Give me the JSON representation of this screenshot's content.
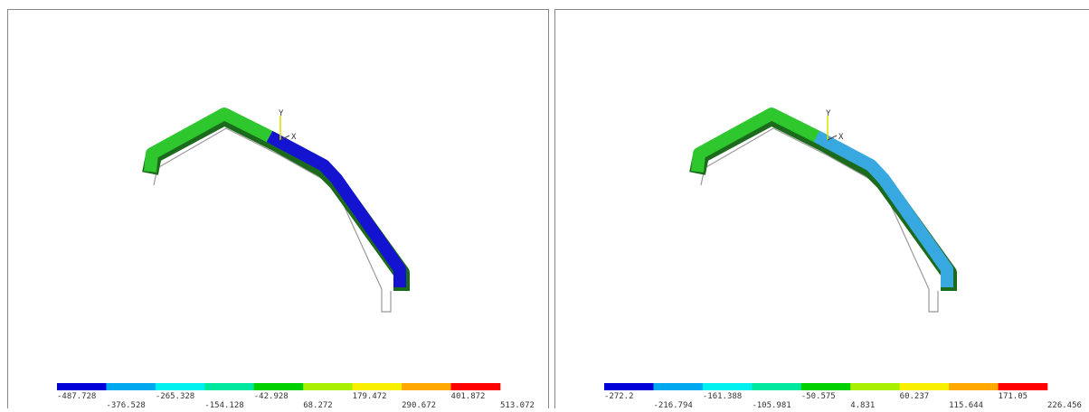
{
  "panels": [
    {
      "axis_labels": [
        "Y",
        "X"
      ],
      "legend": {
        "colors": [
          "#0000d8",
          "#00a8f0",
          "#00f0f0",
          "#00e8a0",
          "#00d000",
          "#a8f000",
          "#f8f000",
          "#ffa800",
          "#ff0000"
        ],
        "labels": [
          -487.728,
          -376.528,
          -265.328,
          -154.128,
          -42.928,
          68.272,
          179.472,
          290.672,
          401.872,
          513.072
        ]
      }
    },
    {
      "axis_labels": [
        "Y",
        "X"
      ],
      "legend": {
        "colors": [
          "#0000d8",
          "#00a8f0",
          "#00f0f0",
          "#00e8a0",
          "#00d000",
          "#a8f000",
          "#f8f000",
          "#ffa800",
          "#ff0000"
        ],
        "labels": [
          -272.2,
          -216.794,
          -161.388,
          -105.981,
          -50.575,
          4.831,
          60.237,
          115.644,
          171.05,
          226.456
        ]
      }
    }
  ]
}
